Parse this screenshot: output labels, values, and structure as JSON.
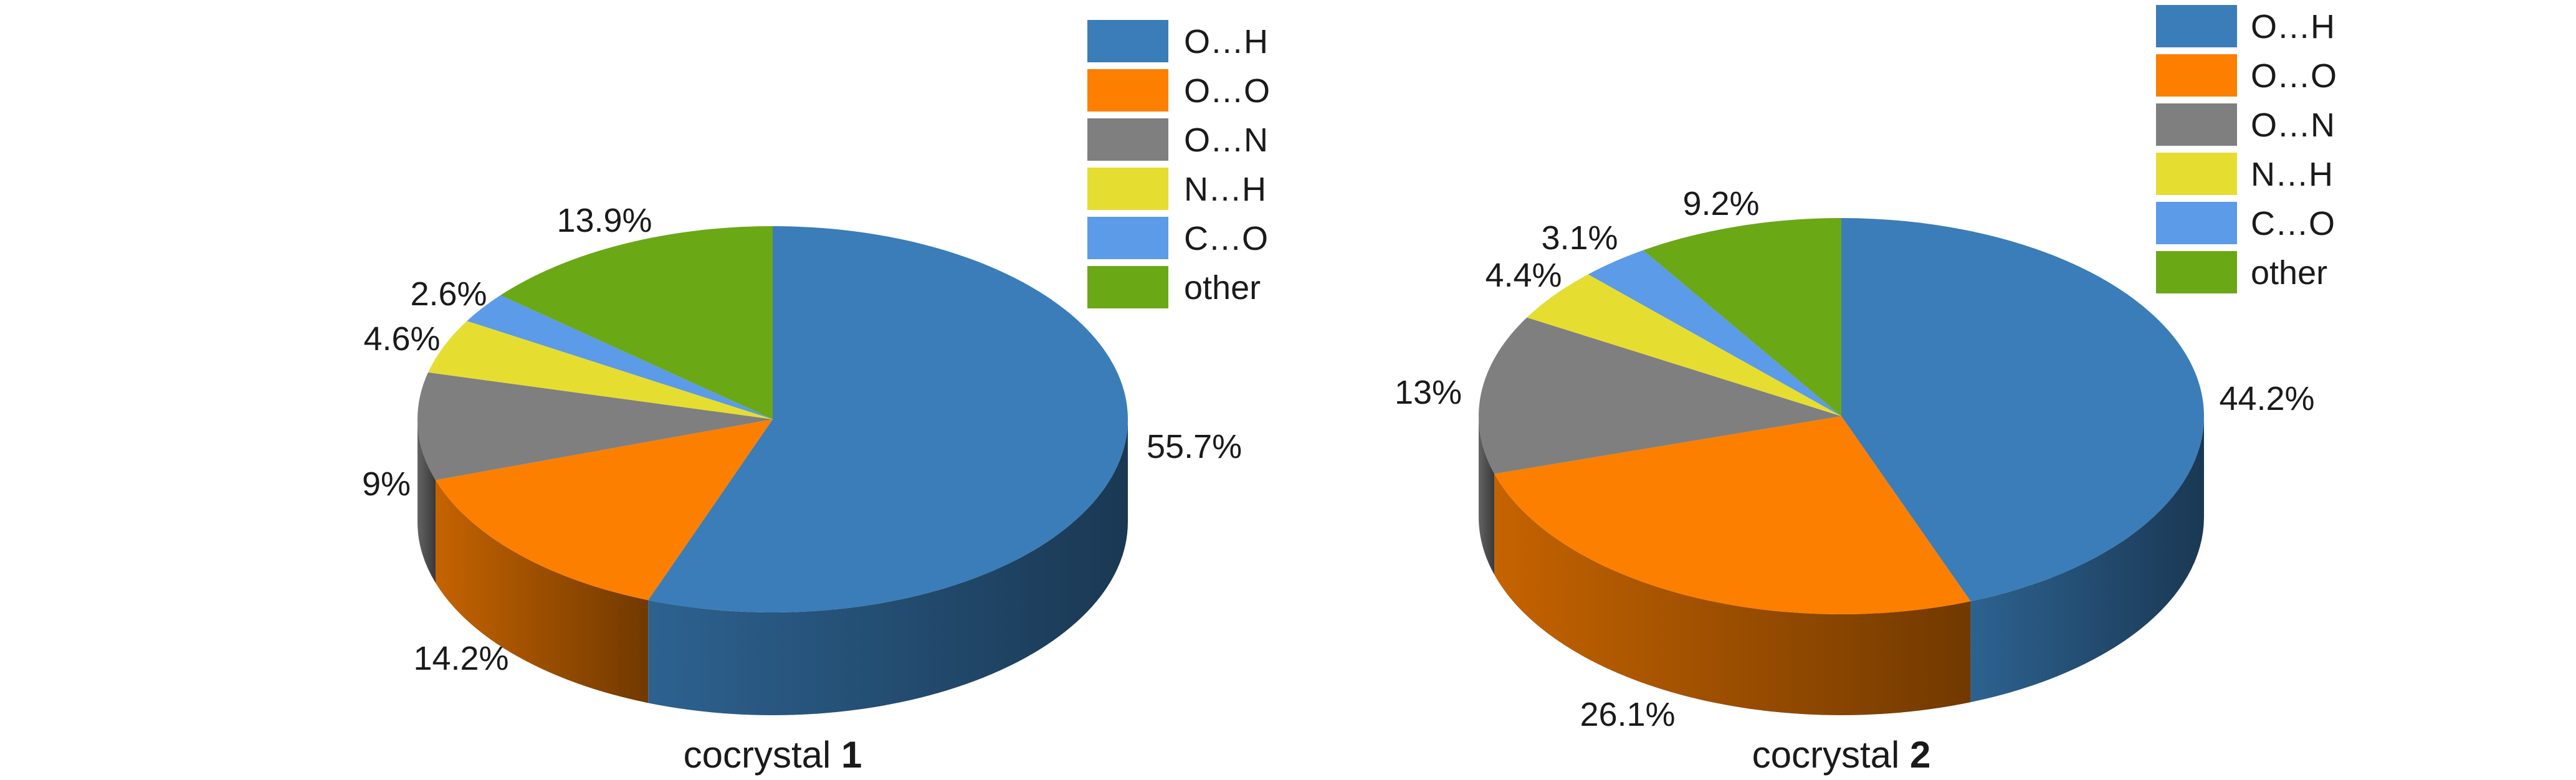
{
  "chart_data": [
    {
      "type": "pie",
      "caption": {
        "prefix": "cocrystal ",
        "number": "1"
      },
      "slices": [
        {
          "label": "O…H",
          "value": 55.7,
          "value_label": "55.7%",
          "color": "#3a7db8"
        },
        {
          "label": "O…O",
          "value": 14.2,
          "value_label": "14.2%",
          "color": "#fc7f00"
        },
        {
          "label": "O…N",
          "value": 9.0,
          "value_label": "9%",
          "color": "#7f7f7f"
        },
        {
          "label": "N…H",
          "value": 4.6,
          "value_label": "4.6%",
          "color": "#e6dd31"
        },
        {
          "label": "C…O",
          "value": 2.6,
          "value_label": "2.6%",
          "color": "#5b9be7"
        },
        {
          "label": "other",
          "value": 13.9,
          "value_label": "13.9%",
          "color": "#6aa816"
        }
      ],
      "style": "3d",
      "legend_position": "top-right"
    },
    {
      "type": "pie",
      "caption": {
        "prefix": "cocrystal ",
        "number": "2"
      },
      "slices": [
        {
          "label": "O…H",
          "value": 44.2,
          "value_label": "44.2%",
          "color": "#3a7db8"
        },
        {
          "label": "O…O",
          "value": 26.1,
          "value_label": "26.1%",
          "color": "#fc7f00"
        },
        {
          "label": "O…N",
          "value": 13.0,
          "value_label": "13%",
          "color": "#7f7f7f"
        },
        {
          "label": "N…H",
          "value": 4.4,
          "value_label": "4.4%",
          "color": "#e6dd31"
        },
        {
          "label": "C…O",
          "value": 3.1,
          "value_label": "3.1%",
          "color": "#5b9be7"
        },
        {
          "label": "other",
          "value": 9.2,
          "value_label": "9.2%",
          "color": "#6aa816"
        }
      ],
      "style": "3d",
      "legend_position": "top-right"
    }
  ]
}
